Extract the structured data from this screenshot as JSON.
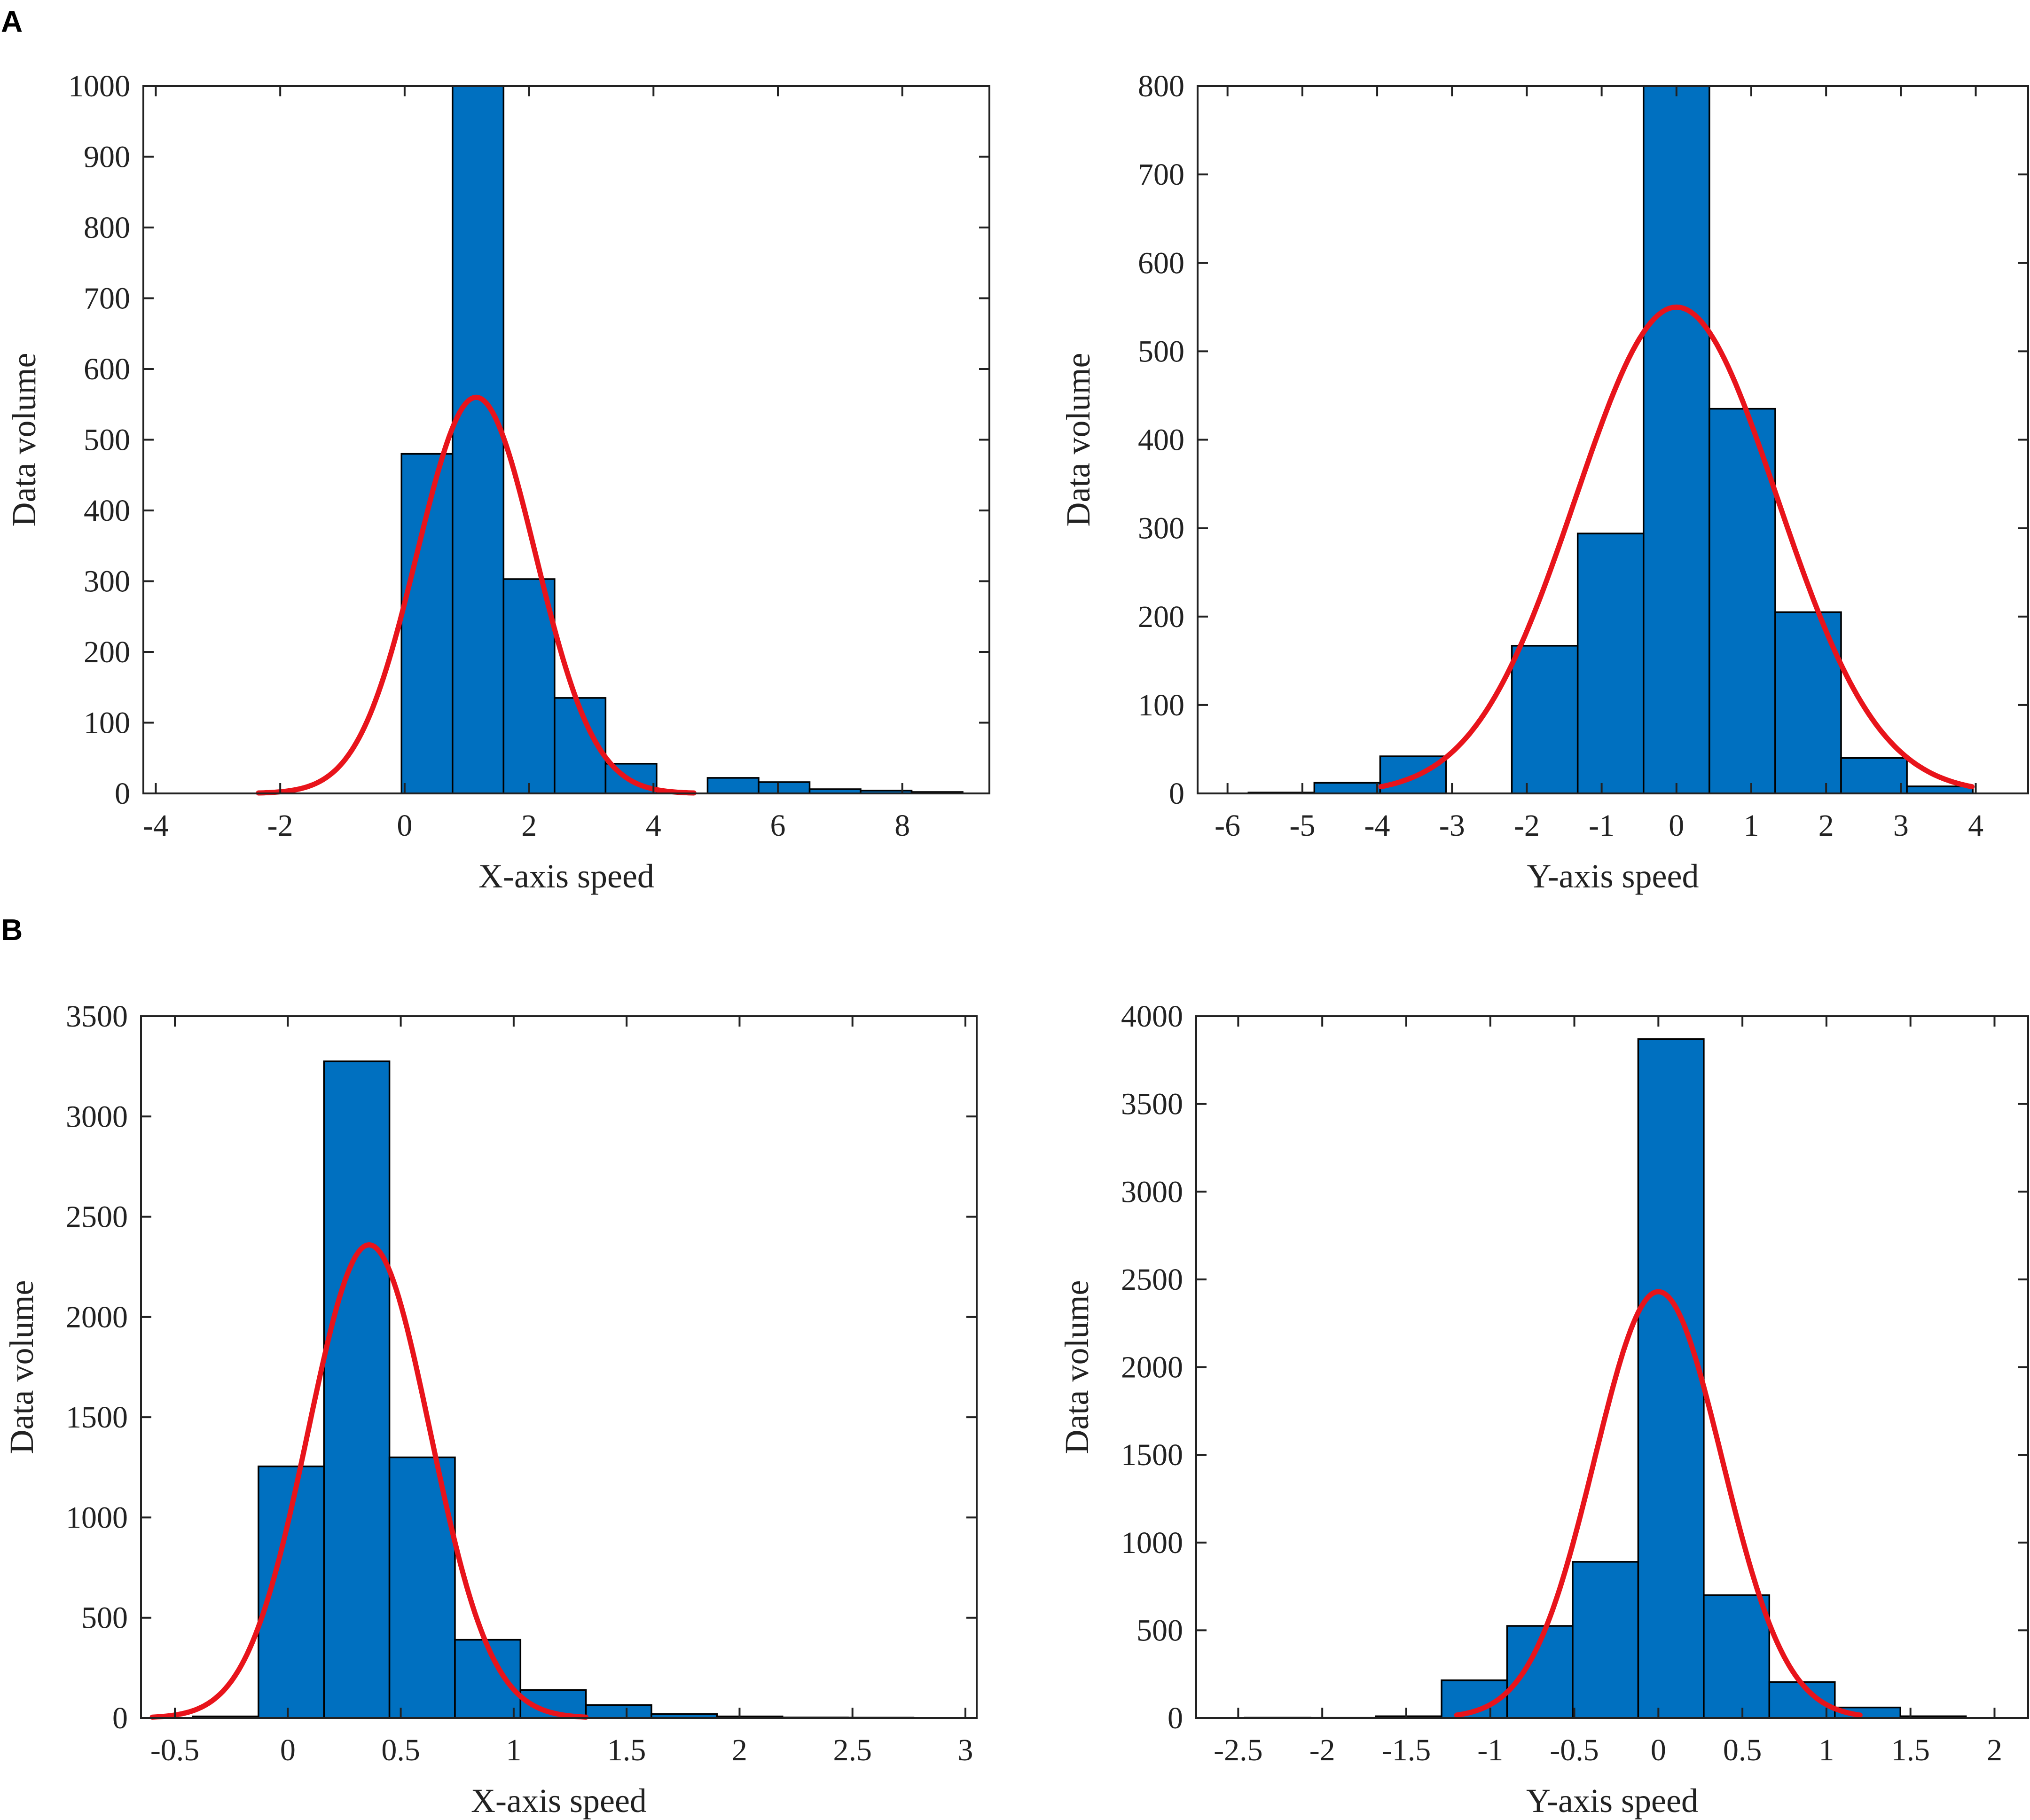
{
  "panel_labels": [
    "A",
    "B"
  ],
  "colors": {
    "bar": "#0070C0",
    "fit": "#E8141B",
    "axis": "#222222"
  },
  "chart_data": [
    {
      "type": "bar",
      "panel": "A",
      "title": "",
      "xlabel": "X-axis speed",
      "ylabel": "Data volume",
      "xlim": [
        -4.2,
        9.4
      ],
      "ylim": [
        0,
        1000
      ],
      "xticks": [
        -4,
        -2,
        0,
        2,
        4,
        6,
        8
      ],
      "xtick_labels": [
        "-4",
        "-2",
        "0",
        "2",
        "4",
        "6",
        "8"
      ],
      "yticks": [
        0,
        100,
        200,
        300,
        400,
        500,
        600,
        700,
        800,
        900,
        1000
      ],
      "ytick_labels": [
        "0",
        "100",
        "200",
        "300",
        "400",
        "500",
        "600",
        "700",
        "800",
        "900",
        "1000"
      ],
      "bin_edges": [
        -0.05,
        0.77,
        1.59,
        2.41,
        3.23,
        4.05,
        4.87,
        5.69,
        6.51,
        7.33,
        8.15,
        8.97
      ],
      "values": [
        480,
        1000,
        303,
        135,
        42,
        0,
        22,
        16,
        6,
        4,
        2
      ],
      "fit": {
        "type": "normal",
        "peak": 560,
        "mean": 1.15,
        "sd": 0.95,
        "x_range": [
          -2.35,
          4.65
        ]
      }
    },
    {
      "type": "bar",
      "panel": "A",
      "title": "",
      "xlabel": "Y-axis speed",
      "ylabel": "Data volume",
      "xlim": [
        -6.4,
        4.7
      ],
      "ylim": [
        0,
        800
      ],
      "xticks": [
        -6,
        -5,
        -4,
        -3,
        -2,
        -1,
        0,
        1,
        2,
        3,
        4
      ],
      "xtick_labels": [
        "-6",
        "-5",
        "-4",
        "-3",
        "-2",
        "-1",
        "0",
        "1",
        "2",
        "3",
        "4"
      ],
      "yticks": [
        0,
        100,
        200,
        300,
        400,
        500,
        600,
        700,
        800
      ],
      "ytick_labels": [
        "0",
        "100",
        "200",
        "300",
        "400",
        "500",
        "600",
        "700",
        "800"
      ],
      "bin_edges": [
        -5.72,
        -4.84,
        -3.96,
        -3.08,
        -2.2,
        -1.32,
        -0.44,
        0.44,
        1.32,
        2.2,
        3.08,
        3.96
      ],
      "values": [
        1,
        12,
        42,
        0,
        167,
        294,
        800,
        435,
        205,
        40,
        8
      ],
      "fit": {
        "type": "normal",
        "peak": 550,
        "mean": 0.0,
        "sd": 1.35,
        "x_range": [
          -3.95,
          3.95
        ]
      }
    },
    {
      "type": "bar",
      "panel": "B",
      "title": "",
      "xlabel": "X-axis speed",
      "ylabel": "Data volume",
      "xlim": [
        -0.65,
        3.05
      ],
      "ylim": [
        0,
        3500
      ],
      "xticks": [
        -0.5,
        0,
        0.5,
        1,
        1.5,
        2,
        2.5,
        3
      ],
      "xtick_labels": [
        "-0.5",
        "0",
        "0.5",
        "1",
        "1.5",
        "2",
        "2.5",
        "3"
      ],
      "yticks": [
        0,
        500,
        1000,
        1500,
        2000,
        2500,
        3000,
        3500
      ],
      "ytick_labels": [
        "0",
        "500",
        "1000",
        "1500",
        "2000",
        "2500",
        "3000",
        "3500"
      ],
      "bin_edges": [
        -0.42,
        -0.13,
        0.16,
        0.45,
        0.74,
        1.03,
        1.32,
        1.61,
        1.9,
        2.19,
        2.48,
        2.77
      ],
      "values": [
        8,
        1255,
        3275,
        1300,
        390,
        140,
        65,
        20,
        8,
        3,
        2
      ],
      "fit": {
        "type": "normal",
        "peak": 2360,
        "mean": 0.36,
        "sd": 0.27,
        "x_range": [
          -0.6,
          1.32
        ]
      }
    },
    {
      "type": "bar",
      "panel": "B",
      "title": "",
      "xlabel": "Y-axis speed",
      "ylabel": "Data volume",
      "xlim": [
        -2.75,
        2.2
      ],
      "ylim": [
        0,
        4000
      ],
      "xticks": [
        -2.5,
        -2,
        -1.5,
        -1,
        -0.5,
        0,
        0.5,
        1,
        1.5,
        2
      ],
      "xtick_labels": [
        "-2.5",
        "-2",
        "-1.5",
        "-1",
        "-0.5",
        "0",
        "0.5",
        "1",
        "1.5",
        "2"
      ],
      "yticks": [
        0,
        500,
        1000,
        1500,
        2000,
        2500,
        3000,
        3500,
        4000
      ],
      "ytick_labels": [
        "0",
        "500",
        "1000",
        "1500",
        "2000",
        "2500",
        "3000",
        "3500",
        "4000"
      ],
      "bin_edges": [
        -2.46,
        -2.07,
        -1.68,
        -1.29,
        -0.9,
        -0.51,
        -0.12,
        0.27,
        0.66,
        1.05,
        1.44,
        1.83
      ],
      "values": [
        2,
        1,
        10,
        215,
        525,
        890,
        3870,
        700,
        205,
        60,
        10
      ],
      "fit": {
        "type": "normal",
        "peak": 2430,
        "mean": 0.0,
        "sd": 0.38,
        "x_range": [
          -1.2,
          1.2
        ]
      }
    }
  ]
}
